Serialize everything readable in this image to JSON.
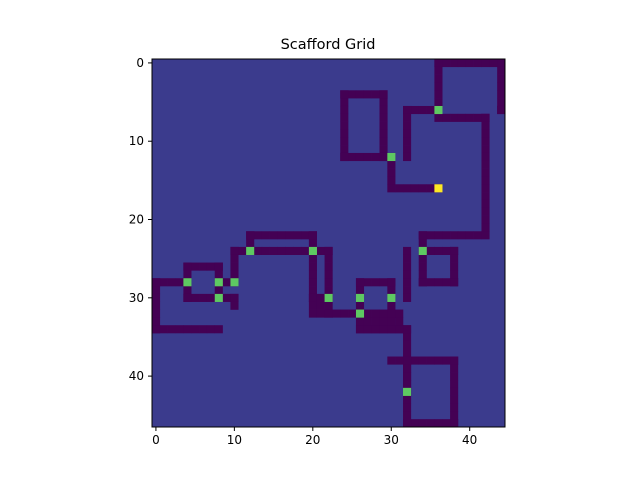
{
  "chart_data": {
    "type": "heatmap",
    "title": "Scafford Grid",
    "xlabel": "",
    "ylabel": "",
    "grid": false,
    "rows": 47,
    "cols": 45,
    "x_ticks": [
      0,
      10,
      20,
      30,
      40
    ],
    "y_ticks": [
      0,
      10,
      20,
      30,
      40
    ],
    "colormap": "viridis",
    "colors": {
      "background": "#3b3b8d",
      "wall": "#440154",
      "junction": "#5ec962",
      "goal": "#fde725"
    },
    "value_legend": {
      "wall": 0,
      "background": 1,
      "junction": 3,
      "goal": 4
    },
    "cells": {
      "wall_rects": [
        [
          0,
          36,
          0,
          44
        ],
        [
          0,
          36,
          6,
          36
        ],
        [
          6,
          44,
          6,
          44
        ],
        [
          0,
          44,
          6,
          44
        ],
        [
          6,
          32,
          6,
          36
        ],
        [
          6,
          32,
          12,
          32
        ],
        [
          7,
          36,
          7,
          42
        ],
        [
          7,
          42,
          22,
          42
        ],
        [
          22,
          34,
          22,
          41
        ],
        [
          22,
          34,
          28,
          34
        ],
        [
          4,
          24,
          4,
          29
        ],
        [
          4,
          24,
          12,
          24
        ],
        [
          4,
          29,
          12,
          29
        ],
        [
          12,
          24,
          12,
          30
        ],
        [
          12,
          30,
          16,
          30
        ],
        [
          16,
          31,
          16,
          36
        ],
        [
          24,
          34,
          24,
          38
        ],
        [
          24,
          38,
          28,
          38
        ],
        [
          28,
          34,
          28,
          38
        ],
        [
          24,
          32,
          30,
          32
        ],
        [
          22,
          12,
          22,
          20
        ],
        [
          22,
          12,
          24,
          12
        ],
        [
          24,
          10,
          24,
          20
        ],
        [
          24,
          10,
          28,
          10
        ],
        [
          28,
          10,
          28,
          9
        ],
        [
          22,
          20,
          30,
          20
        ],
        [
          24,
          22,
          30,
          22
        ],
        [
          30,
          20,
          32,
          22
        ],
        [
          32,
          22,
          32,
          26
        ],
        [
          24,
          21,
          24,
          22
        ],
        [
          28,
          26,
          28,
          30
        ],
        [
          28,
          26,
          32,
          26
        ],
        [
          28,
          30,
          32,
          30
        ],
        [
          32,
          26,
          34,
          31
        ],
        [
          34,
          26,
          34,
          32
        ],
        [
          34,
          32,
          42,
          32
        ],
        [
          38,
          30,
          38,
          38
        ],
        [
          38,
          38,
          46,
          38
        ],
        [
          46,
          32,
          46,
          38
        ],
        [
          38,
          32,
          46,
          32
        ],
        [
          26,
          4,
          26,
          8
        ],
        [
          26,
          4,
          30,
          4
        ],
        [
          26,
          8,
          30,
          8
        ],
        [
          28,
          0,
          28,
          4
        ],
        [
          28,
          0,
          34,
          0
        ],
        [
          34,
          0,
          34,
          8
        ],
        [
          30,
          4,
          30,
          8
        ],
        [
          30,
          8,
          30,
          10
        ],
        [
          30,
          10,
          31,
          10
        ]
      ],
      "junctions": [
        [
          6,
          36
        ],
        [
          12,
          30
        ],
        [
          24,
          12
        ],
        [
          24,
          20
        ],
        [
          24,
          34
        ],
        [
          28,
          4
        ],
        [
          28,
          8
        ],
        [
          28,
          10
        ],
        [
          30,
          8
        ],
        [
          30,
          22
        ],
        [
          30,
          26
        ],
        [
          30,
          30
        ],
        [
          32,
          26
        ],
        [
          42,
          32
        ]
      ],
      "goal": [
        16,
        36
      ]
    }
  }
}
